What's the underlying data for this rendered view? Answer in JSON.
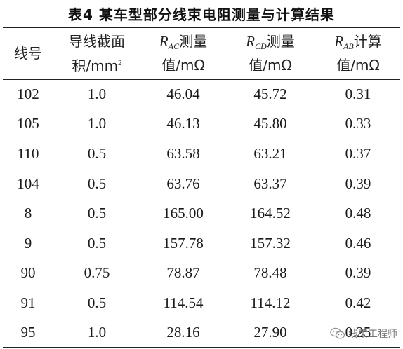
{
  "title": "表4  某车型部分线束电阻测量与计算结果",
  "headers": {
    "wire_no": "线号",
    "area_line1": "导线截面",
    "area_line2_prefix": "积/mm",
    "area_line2_sup": "2",
    "rac_sym": "R",
    "rac_sub": "AC",
    "rac_line1_suffix": "测量",
    "rac_line2": "值/mΩ",
    "rcd_sym": "R",
    "rcd_sub": "CD",
    "rcd_line1_suffix": "测量",
    "rcd_line2": "值/mΩ",
    "rab_sym": "R",
    "rab_sub": "AB",
    "rab_line1_suffix": "计算",
    "rab_line2": "值/mΩ"
  },
  "rows": [
    {
      "wire": "102",
      "area": "1.0",
      "rac": "46.04",
      "rcd": "45.72",
      "rab": "0.31"
    },
    {
      "wire": "105",
      "area": "1.0",
      "rac": "46.13",
      "rcd": "45.80",
      "rab": "0.33"
    },
    {
      "wire": "110",
      "area": "0.5",
      "rac": "63.58",
      "rcd": "63.21",
      "rab": "0.37"
    },
    {
      "wire": "104",
      "area": "0.5",
      "rac": "63.76",
      "rcd": "63.37",
      "rab": "0.39"
    },
    {
      "wire": "8",
      "area": "0.5",
      "rac": "165.00",
      "rcd": "164.52",
      "rab": "0.48"
    },
    {
      "wire": "9",
      "area": "0.5",
      "rac": "157.78",
      "rcd": "157.32",
      "rab": "0.46"
    },
    {
      "wire": "90",
      "area": "0.75",
      "rac": "78.87",
      "rcd": "78.48",
      "rab": "0.39"
    },
    {
      "wire": "91",
      "area": "0.5",
      "rac": "114.54",
      "rcd": "114.12",
      "rab": "0.42"
    },
    {
      "wire": "95",
      "area": "1.0",
      "rac": "28.16",
      "rcd": "27.90",
      "rab": "0.25"
    }
  ],
  "watermark": {
    "text": "线束工程师",
    "icon": "wechat-icon"
  }
}
